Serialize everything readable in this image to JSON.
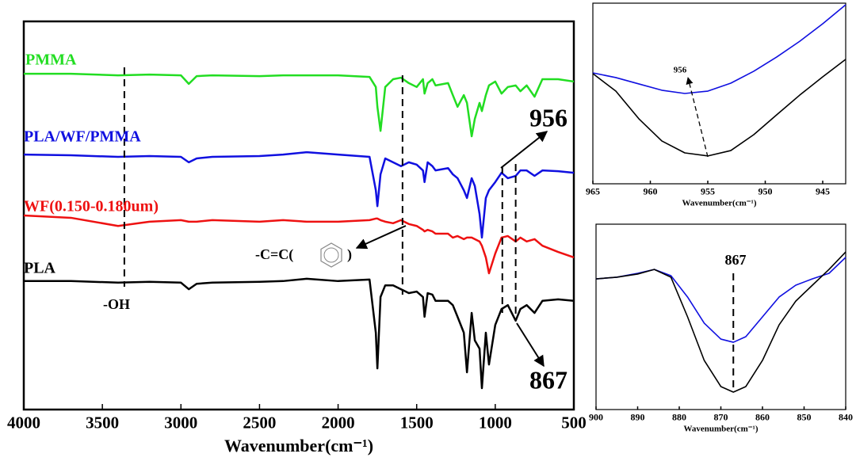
{
  "chart_data": [
    {
      "type": "line",
      "xlabel": "Wavenumber(cm⁻¹)",
      "xlim": [
        4000,
        500
      ],
      "ylim": [
        0,
        100
      ],
      "xticks": [
        4000,
        3500,
        3000,
        2500,
        2000,
        1500,
        1000,
        500
      ],
      "x": [
        4000,
        3700,
        3400,
        3200,
        3000,
        2950,
        2900,
        2800,
        2500,
        2350,
        2200,
        2000,
        1800,
        1760,
        1750,
        1730,
        1700,
        1650,
        1600,
        1550,
        1500,
        1460,
        1450,
        1430,
        1400,
        1380,
        1300,
        1270,
        1240,
        1200,
        1180,
        1150,
        1130,
        1100,
        1085,
        1060,
        1040,
        1000,
        960,
        920,
        870,
        840,
        800,
        750,
        700,
        600,
        500
      ],
      "series": [
        {
          "name": "PMMA",
          "color": "#22dd22",
          "values": [
            86.5,
            86.5,
            86.1,
            86.3,
            86.1,
            83.9,
            85.9,
            86.1,
            85.9,
            86.1,
            86.1,
            86.1,
            85.7,
            83.1,
            78.0,
            71.8,
            83.1,
            85.1,
            85.5,
            84.1,
            83.1,
            85.1,
            81.4,
            84.1,
            85.1,
            83.5,
            84.1,
            81.0,
            78.0,
            81.0,
            79.0,
            70.4,
            74.9,
            79.0,
            76.9,
            81.0,
            83.5,
            84.5,
            81.4,
            83.1,
            83.5,
            82.0,
            83.5,
            80.6,
            85.1,
            85.1,
            84.5
          ]
        },
        {
          "name": "PLA/WF/PMMA",
          "color": "#1010e0",
          "values": [
            65.7,
            65.5,
            65.1,
            65.3,
            65.1,
            63.7,
            64.7,
            65.1,
            65.3,
            65.7,
            66.3,
            65.7,
            65.1,
            56.5,
            52.4,
            60.6,
            64.7,
            63.7,
            62.7,
            63.7,
            63.1,
            61.6,
            58.6,
            63.7,
            62.7,
            61.6,
            62.2,
            60.6,
            59.6,
            56.5,
            54.5,
            59.6,
            57.6,
            50.4,
            44.3,
            54.5,
            56.5,
            58.6,
            61.0,
            59.6,
            60.2,
            61.6,
            61.6,
            60.2,
            61.6,
            61.4,
            61.0
          ]
        },
        {
          "name": "WF(0.150-0.180um)",
          "color": "#ee1111",
          "values": [
            50.0,
            49.4,
            47.3,
            48.4,
            48.8,
            48.4,
            48.4,
            48.8,
            48.4,
            48.8,
            48.4,
            48.4,
            48.8,
            49.2,
            49.2,
            48.8,
            48.4,
            48.0,
            48.8,
            47.8,
            47.3,
            46.3,
            45.9,
            46.3,
            45.9,
            45.3,
            45.3,
            44.3,
            44.7,
            43.9,
            44.3,
            44.3,
            43.9,
            43.3,
            42.2,
            39.2,
            35.1,
            40.2,
            44.3,
            44.7,
            43.3,
            44.3,
            43.3,
            43.9,
            42.2,
            40.6,
            39.2
          ]
        },
        {
          "name": "PLA",
          "color": "#000000",
          "values": [
            33.1,
            33.1,
            32.7,
            32.9,
            32.7,
            31.0,
            32.4,
            32.7,
            32.9,
            33.1,
            33.7,
            33.1,
            33.5,
            19.8,
            10.6,
            29.0,
            32.0,
            32.0,
            31.0,
            30.0,
            30.4,
            29.0,
            23.9,
            30.0,
            29.6,
            28.0,
            28.0,
            26.9,
            23.9,
            19.8,
            9.6,
            24.9,
            17.8,
            15.7,
            5.5,
            19.8,
            11.6,
            21.8,
            25.9,
            26.9,
            22.9,
            25.9,
            26.9,
            24.9,
            28.0,
            28.4,
            28.0
          ]
        }
      ],
      "markers": [
        3360,
        1590,
        955,
        870
      ],
      "annotations": [
        "-OH",
        "-C=C(",
        ")",
        "956",
        "867"
      ]
    },
    {
      "type": "line",
      "xlabel": "Wavenumber(cm⁻¹)",
      "xlim": [
        965,
        943
      ],
      "ylim": [
        0,
        100
      ],
      "xticks": [
        965,
        960,
        955,
        950,
        945
      ],
      "x": [
        965,
        963,
        961,
        959,
        957,
        955,
        953,
        951,
        949,
        947,
        945,
        943
      ],
      "series": [
        {
          "color": "#1010e0",
          "values": [
            61.4,
            58.8,
            55.3,
            51.8,
            50.0,
            51.3,
            55.7,
            62.3,
            70.2,
            78.9,
            88.6,
            99.1
          ]
        },
        {
          "color": "#000000",
          "values": [
            61.0,
            51.3,
            36.0,
            23.7,
            17.1,
            15.4,
            18.4,
            27.2,
            38.2,
            49.1,
            59.2,
            68.9
          ]
        }
      ],
      "annotations": [
        "956"
      ]
    },
    {
      "type": "line",
      "xlabel": "Wavenumber(cm⁻¹)",
      "xlim": [
        900,
        840
      ],
      "ylim": [
        0,
        100
      ],
      "xticks": [
        900,
        890,
        880,
        870,
        860,
        850,
        840
      ],
      "x": [
        900,
        895,
        890,
        886,
        882,
        878,
        874,
        870,
        867,
        864,
        860,
        856,
        852,
        848,
        844,
        840
      ],
      "series": [
        {
          "color": "#1010e0",
          "values": [
            70.5,
            71.4,
            73.5,
            75.6,
            72.2,
            60.7,
            46.6,
            38.0,
            36.3,
            39.3,
            50.0,
            60.7,
            67.1,
            70.5,
            73.5,
            82.1
          ]
        },
        {
          "color": "#000000",
          "values": [
            70.5,
            71.4,
            73.1,
            75.6,
            71.4,
            50.0,
            26.5,
            12.4,
            9.4,
            12.4,
            26.5,
            45.7,
            58.5,
            67.1,
            75.6,
            85.0
          ]
        }
      ],
      "markers": [
        867
      ],
      "annotations": [
        "867"
      ]
    }
  ]
}
